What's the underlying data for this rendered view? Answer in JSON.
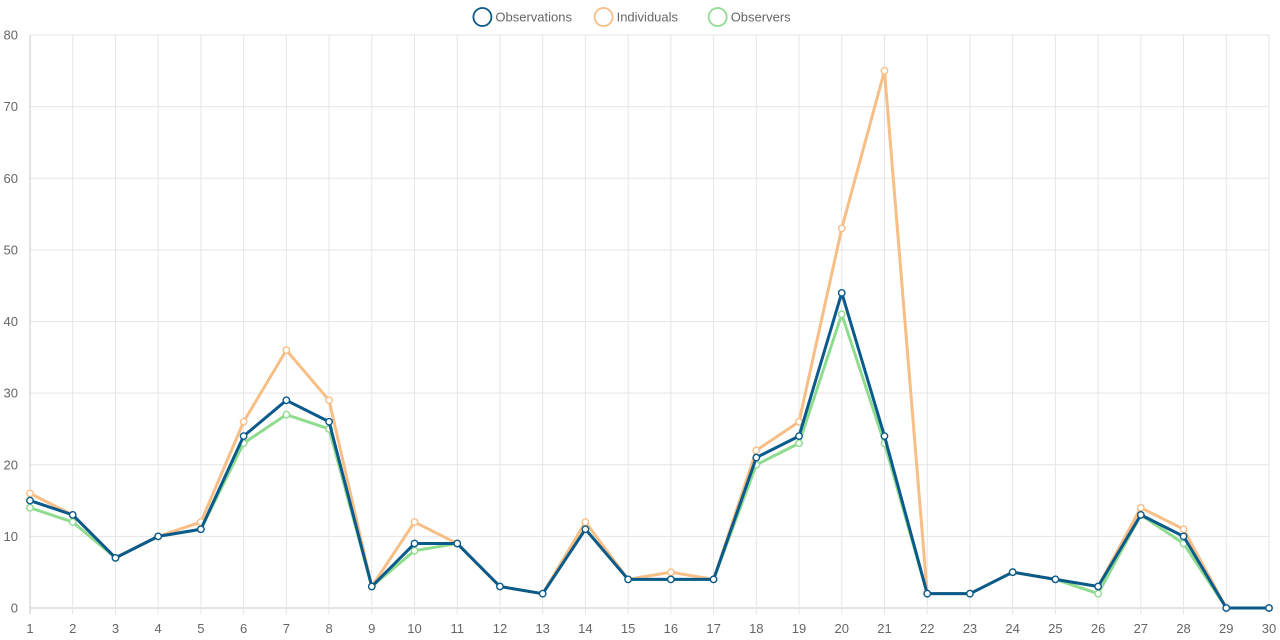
{
  "chart_data": {
    "type": "line",
    "x": [
      1,
      2,
      3,
      4,
      5,
      6,
      7,
      8,
      9,
      10,
      11,
      12,
      13,
      14,
      15,
      16,
      17,
      18,
      19,
      20,
      21,
      22,
      23,
      24,
      25,
      26,
      27,
      28,
      29,
      30
    ],
    "ylim": [
      0,
      80
    ],
    "yticks": [
      0,
      10,
      20,
      30,
      40,
      50,
      60,
      70,
      80
    ],
    "grid": true,
    "legend_position": "top-center",
    "series": [
      {
        "name": "Observers",
        "color": "#8fdc8f",
        "values": [
          14,
          12,
          7,
          10,
          11,
          23,
          27,
          25,
          3,
          8,
          9,
          3,
          2,
          11,
          4,
          4,
          4,
          20,
          23,
          41,
          23,
          2,
          2,
          5,
          4,
          2,
          13,
          9,
          0,
          0
        ]
      },
      {
        "name": "Individuals",
        "color": "#f7be86",
        "values": [
          16,
          13,
          7,
          10,
          12,
          26,
          36,
          29,
          3,
          12,
          9,
          3,
          2,
          12,
          4,
          5,
          4,
          22,
          26,
          53,
          75,
          2,
          2,
          5,
          4,
          3,
          14,
          11,
          0,
          0
        ]
      },
      {
        "name": "Observations",
        "color": "#0a5a8c",
        "values": [
          15,
          13,
          7,
          10,
          11,
          24,
          29,
          26,
          3,
          9,
          9,
          3,
          2,
          11,
          4,
          4,
          4,
          21,
          24,
          44,
          24,
          2,
          2,
          5,
          4,
          3,
          13,
          10,
          0,
          0
        ]
      }
    ],
    "legend_order": [
      "Observations",
      "Individuals",
      "Observers"
    ]
  }
}
